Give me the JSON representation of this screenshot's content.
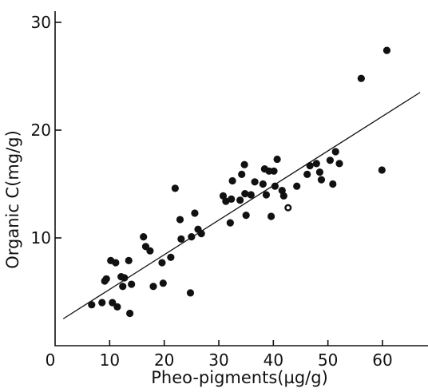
{
  "chart_data": {
    "type": "scatter",
    "title": "",
    "xlabel": "Pheo-pigments(µg/g)",
    "ylabel": "Organic  C(mg/g)",
    "xlim": [
      0,
      67
    ],
    "ylim": [
      0,
      31
    ],
    "xticks": [
      0,
      10,
      20,
      30,
      40,
      50,
      60
    ],
    "yticks": [
      10,
      20,
      30
    ],
    "xtick_labels": [
      "0",
      "10",
      "20",
      "30",
      "40",
      "50",
      "60"
    ],
    "ytick_labels": [
      "10",
      "20",
      "30"
    ],
    "grid": false,
    "legend": "none",
    "series": [
      {
        "points": [
          {
            "x": 6.7,
            "y": 3.8
          },
          {
            "x": 8.6,
            "y": 4.0
          },
          {
            "x": 9.1,
            "y": 6.0
          },
          {
            "x": 9.4,
            "y": 6.2
          },
          {
            "x": 10.2,
            "y": 7.9
          },
          {
            "x": 10.5,
            "y": 4.0
          },
          {
            "x": 11.1,
            "y": 7.7
          },
          {
            "x": 11.4,
            "y": 3.6
          },
          {
            "x": 12.1,
            "y": 6.4
          },
          {
            "x": 12.4,
            "y": 5.5
          },
          {
            "x": 12.7,
            "y": 6.3
          },
          {
            "x": 13.5,
            "y": 7.9
          },
          {
            "x": 13.7,
            "y": 3.0
          },
          {
            "x": 14.0,
            "y": 5.7
          },
          {
            "x": 16.2,
            "y": 10.1
          },
          {
            "x": 16.6,
            "y": 9.2
          },
          {
            "x": 17.4,
            "y": 8.8
          },
          {
            "x": 18.0,
            "y": 5.5
          },
          {
            "x": 19.6,
            "y": 7.7
          },
          {
            "x": 19.8,
            "y": 5.8
          },
          {
            "x": 21.2,
            "y": 8.2
          },
          {
            "x": 22.0,
            "y": 14.6
          },
          {
            "x": 22.9,
            "y": 11.7
          },
          {
            "x": 23.1,
            "y": 9.9
          },
          {
            "x": 24.8,
            "y": 4.9
          },
          {
            "x": 25.0,
            "y": 10.1
          },
          {
            "x": 25.6,
            "y": 12.3
          },
          {
            "x": 26.2,
            "y": 10.8
          },
          {
            "x": 26.8,
            "y": 10.4
          },
          {
            "x": 30.8,
            "y": 13.9
          },
          {
            "x": 31.3,
            "y": 13.4
          },
          {
            "x": 32.1,
            "y": 11.4
          },
          {
            "x": 32.3,
            "y": 13.6
          },
          {
            "x": 32.5,
            "y": 15.3
          },
          {
            "x": 33.9,
            "y": 13.5
          },
          {
            "x": 34.2,
            "y": 15.9
          },
          {
            "x": 34.7,
            "y": 16.8
          },
          {
            "x": 34.8,
            "y": 14.1
          },
          {
            "x": 35.0,
            "y": 12.1
          },
          {
            "x": 35.9,
            "y": 14.0
          },
          {
            "x": 36.6,
            "y": 15.2
          },
          {
            "x": 38.1,
            "y": 15.0
          },
          {
            "x": 38.4,
            "y": 16.4
          },
          {
            "x": 38.7,
            "y": 14.0
          },
          {
            "x": 39.2,
            "y": 16.2
          },
          {
            "x": 39.6,
            "y": 12.0
          },
          {
            "x": 40.1,
            "y": 16.2
          },
          {
            "x": 40.3,
            "y": 14.8
          },
          {
            "x": 40.7,
            "y": 17.3
          },
          {
            "x": 41.6,
            "y": 14.4
          },
          {
            "x": 41.9,
            "y": 13.9
          },
          {
            "x": 42.7,
            "y": 12.8,
            "hollow": true
          },
          {
            "x": 44.3,
            "y": 14.8
          },
          {
            "x": 46.2,
            "y": 15.9
          },
          {
            "x": 46.7,
            "y": 16.7
          },
          {
            "x": 47.9,
            "y": 16.9
          },
          {
            "x": 48.5,
            "y": 16.1
          },
          {
            "x": 48.8,
            "y": 15.4
          },
          {
            "x": 50.4,
            "y": 17.2
          },
          {
            "x": 50.9,
            "y": 15.0
          },
          {
            "x": 51.4,
            "y": 18.0
          },
          {
            "x": 52.1,
            "y": 16.9
          },
          {
            "x": 56.1,
            "y": 24.8
          },
          {
            "x": 59.9,
            "y": 16.3
          },
          {
            "x": 60.8,
            "y": 27.4
          }
        ]
      }
    ],
    "regression_line": {
      "x": [
        1.5,
        66.9
      ],
      "y": [
        2.5,
        23.5
      ]
    }
  }
}
